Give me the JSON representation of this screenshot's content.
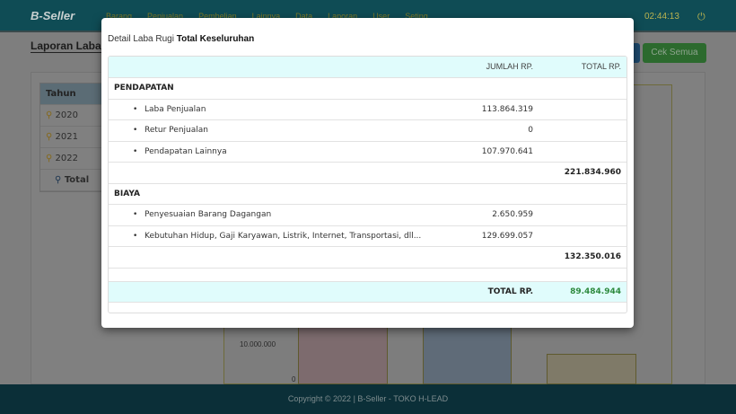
{
  "navbar": {
    "logo": "B-Seller",
    "items": [
      "Barang",
      "Penjualan",
      "Pembelian",
      "Lainnya",
      "Data",
      "Laporan",
      "User",
      "Seting"
    ],
    "clock": "02:44:13"
  },
  "page": {
    "title": "Laporan Laba Rugi",
    "buttons": {
      "check_all": "Cek Semua"
    }
  },
  "year_table": {
    "header": "Tahun",
    "rows": [
      "2020",
      "2021",
      "2022"
    ],
    "total": "Total"
  },
  "chart": {
    "y_ticks": [
      "10.000.000",
      "0"
    ]
  },
  "modal": {
    "title_prefix": "Detail Laba Rugi",
    "title_bold": "Total Keseluruhan",
    "headers": {
      "jumlah": "JUMLAH RP.",
      "total": "TOTAL RP."
    },
    "pendapatan": {
      "label": "PENDAPATAN",
      "items": [
        {
          "name": "Laba Penjualan",
          "value": "113.864.319"
        },
        {
          "name": "Retur Penjualan",
          "value": "0"
        },
        {
          "name": "Pendapatan Lainnya",
          "value": "107.970.641"
        }
      ],
      "subtotal": "221.834.960"
    },
    "biaya": {
      "label": "BIAYA",
      "items": [
        {
          "name": "Penyesuaian Barang Dagangan",
          "value": "2.650.959"
        },
        {
          "name": "Kebutuhan Hidup, Gaji Karyawan, Listrik, Internet, Transportasi, dll...",
          "value": "129.699.057"
        }
      ],
      "subtotal": "132.350.016"
    },
    "total_label": "TOTAL RP.",
    "total_value": "89.484.944",
    "colors": {
      "header_bg": "#e0fcfc",
      "total_value": "#2e8a3e"
    }
  },
  "footer": {
    "text": "Copyright © 2022 | B-Seller - TOKO H-LEAD"
  }
}
